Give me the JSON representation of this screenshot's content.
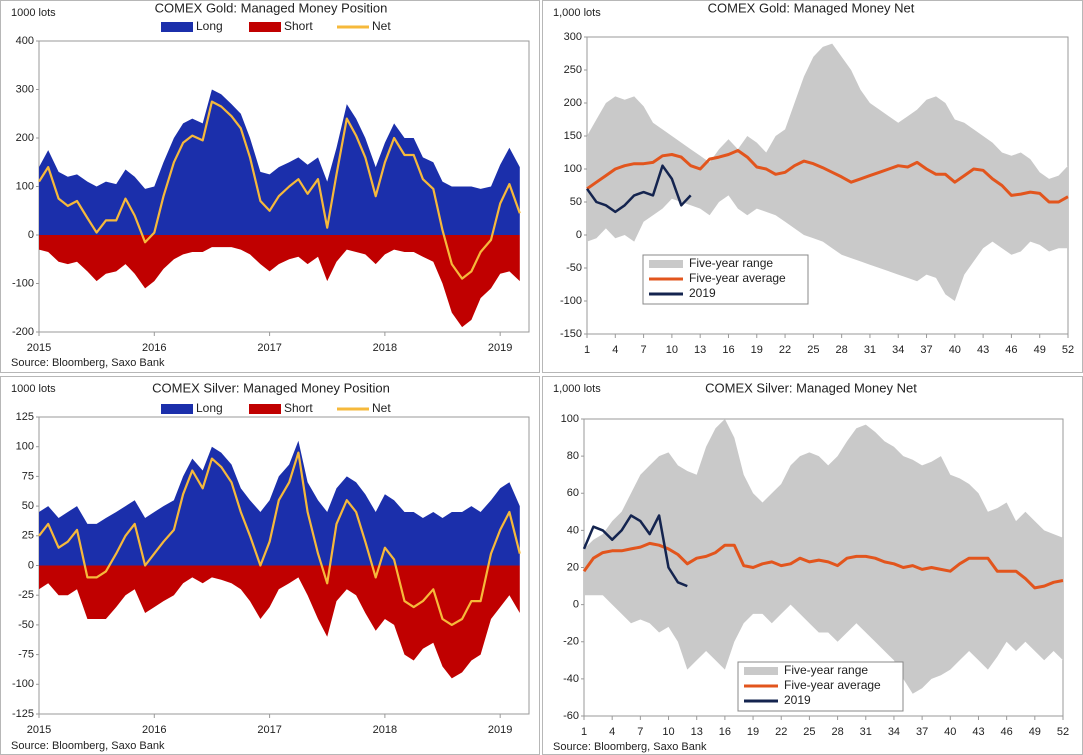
{
  "chart_data": [
    {
      "type": "position-area",
      "title": "COMEX Gold: Managed Money Position",
      "y_label": "1000 lots",
      "source": "Source: Bloomberg, Saxo Bank",
      "legend": "top",
      "x": [
        2015,
        2015.08,
        2015.17,
        2015.25,
        2015.33,
        2015.42,
        2015.5,
        2015.58,
        2015.67,
        2015.75,
        2015.83,
        2015.92,
        2016,
        2016.08,
        2016.17,
        2016.25,
        2016.33,
        2016.42,
        2016.5,
        2016.58,
        2016.67,
        2016.75,
        2016.83,
        2016.92,
        2017,
        2017.08,
        2017.17,
        2017.25,
        2017.33,
        2017.42,
        2017.5,
        2017.58,
        2017.67,
        2017.75,
        2017.83,
        2017.92,
        2018,
        2018.08,
        2018.17,
        2018.25,
        2018.33,
        2018.42,
        2018.5,
        2018.58,
        2018.67,
        2018.75,
        2018.83,
        2018.92,
        2019,
        2019.08,
        2019.17
      ],
      "xlim": [
        2015,
        2019.25
      ],
      "xticks": [
        2015,
        2016,
        2017,
        2018,
        2019
      ],
      "ylim": [
        -200,
        400
      ],
      "yticks": [
        -200,
        -100,
        0,
        100,
        200,
        300,
        400
      ],
      "series": [
        {
          "name": "Long",
          "color": "#1b2fab",
          "style": "area",
          "values": [
            140,
            175,
            130,
            120,
            125,
            110,
            100,
            110,
            105,
            135,
            120,
            95,
            100,
            150,
            200,
            230,
            240,
            230,
            300,
            290,
            270,
            250,
            200,
            130,
            125,
            140,
            150,
            160,
            145,
            160,
            110,
            180,
            270,
            240,
            200,
            140,
            190,
            230,
            200,
            200,
            160,
            150,
            110,
            100,
            100,
            100,
            95,
            100,
            145,
            180,
            140
          ]
        },
        {
          "name": "Short",
          "color": "#c00000",
          "style": "area",
          "values": [
            -30,
            -35,
            -55,
            -60,
            -55,
            -75,
            -95,
            -80,
            -75,
            -60,
            -80,
            -110,
            -95,
            -70,
            -50,
            -40,
            -35,
            -35,
            -25,
            -25,
            -25,
            -30,
            -40,
            -60,
            -75,
            -60,
            -50,
            -45,
            -60,
            -45,
            -95,
            -55,
            -30,
            -35,
            -40,
            -60,
            -40,
            -30,
            -35,
            -35,
            -45,
            -55,
            -100,
            -160,
            -190,
            -175,
            -130,
            -110,
            -80,
            -75,
            -95
          ]
        },
        {
          "name": "Net",
          "color": "#f6b93b",
          "style": "line",
          "values": [
            110,
            140,
            75,
            60,
            70,
            35,
            5,
            30,
            30,
            75,
            40,
            -15,
            5,
            80,
            150,
            190,
            205,
            195,
            275,
            265,
            245,
            220,
            160,
            70,
            50,
            80,
            100,
            115,
            85,
            115,
            15,
            125,
            240,
            205,
            160,
            80,
            150,
            200,
            165,
            165,
            115,
            95,
            10,
            -60,
            -90,
            -75,
            -35,
            -10,
            65,
            105,
            45
          ]
        }
      ]
    },
    {
      "type": "seasonal",
      "title": "COMEX Gold: Managed Money Net",
      "y_label": "1,000 lots",
      "legend": "lower left",
      "x": [
        1,
        2,
        3,
        4,
        5,
        6,
        7,
        8,
        9,
        10,
        11,
        12,
        13,
        14,
        15,
        16,
        17,
        18,
        19,
        20,
        21,
        22,
        23,
        24,
        25,
        26,
        27,
        28,
        29,
        30,
        31,
        32,
        33,
        34,
        35,
        36,
        37,
        38,
        39,
        40,
        41,
        42,
        43,
        44,
        45,
        46,
        47,
        48,
        49,
        50,
        51,
        52
      ],
      "xlim": [
        1,
        52
      ],
      "xticks": [
        1,
        4,
        7,
        10,
        13,
        16,
        19,
        22,
        25,
        28,
        31,
        34,
        37,
        40,
        43,
        46,
        49,
        52
      ],
      "ylim": [
        -150,
        300
      ],
      "yticks": [
        -150,
        -100,
        -50,
        0,
        50,
        100,
        150,
        200,
        250,
        300
      ],
      "series": [
        {
          "name": "Five-year range",
          "color": "#c9c9c9",
          "high": [
            150,
            175,
            200,
            210,
            205,
            210,
            195,
            170,
            160,
            150,
            140,
            130,
            120,
            110,
            130,
            145,
            130,
            150,
            140,
            125,
            150,
            160,
            200,
            240,
            270,
            285,
            290,
            270,
            250,
            220,
            200,
            190,
            180,
            170,
            180,
            190,
            205,
            210,
            200,
            175,
            170,
            160,
            150,
            140,
            125,
            120,
            125,
            115,
            95,
            85,
            90,
            105
          ],
          "low": [
            -10,
            -5,
            10,
            -5,
            0,
            -10,
            20,
            30,
            40,
            55,
            50,
            45,
            40,
            30,
            50,
            60,
            40,
            30,
            40,
            35,
            30,
            20,
            10,
            0,
            -5,
            -10,
            -20,
            -30,
            -35,
            -40,
            -45,
            -50,
            -55,
            -60,
            -65,
            -70,
            -60,
            -65,
            -90,
            -100,
            -60,
            -40,
            -20,
            -10,
            -20,
            -30,
            -25,
            -10,
            -15,
            -25,
            -20,
            -20
          ]
        },
        {
          "name": "Five-year average",
          "color": "#e2551d",
          "values": [
            70,
            80,
            90,
            100,
            105,
            108,
            108,
            110,
            120,
            122,
            118,
            105,
            100,
            115,
            118,
            122,
            128,
            118,
            103,
            100,
            92,
            95,
            105,
            112,
            108,
            102,
            95,
            88,
            80,
            85,
            90,
            95,
            100,
            105,
            103,
            110,
            100,
            92,
            92,
            80,
            90,
            100,
            98,
            85,
            75,
            60,
            62,
            65,
            63,
            50,
            50,
            58
          ]
        },
        {
          "name": "2019",
          "color": "#14244f",
          "values": [
            70,
            50,
            45,
            35,
            45,
            60,
            65,
            60,
            105,
            85,
            45,
            60,
            null,
            null,
            null,
            null,
            null,
            null,
            null,
            null,
            null,
            null,
            null,
            null,
            null,
            null,
            null,
            null,
            null,
            null,
            null,
            null,
            null,
            null,
            null,
            null,
            null,
            null,
            null,
            null,
            null,
            null,
            null,
            null,
            null,
            null,
            null,
            null,
            null,
            null,
            null,
            null
          ]
        }
      ]
    },
    {
      "type": "position-area",
      "title": "COMEX Silver: Managed Money Position",
      "y_label": "1000 lots",
      "source": "Source: Bloomberg, Saxo Bank",
      "legend": "top",
      "x": [
        2015,
        2015.08,
        2015.17,
        2015.25,
        2015.33,
        2015.42,
        2015.5,
        2015.58,
        2015.67,
        2015.75,
        2015.83,
        2015.92,
        2016,
        2016.08,
        2016.17,
        2016.25,
        2016.33,
        2016.42,
        2016.5,
        2016.58,
        2016.67,
        2016.75,
        2016.83,
        2016.92,
        2017,
        2017.08,
        2017.17,
        2017.25,
        2017.33,
        2017.42,
        2017.5,
        2017.58,
        2017.67,
        2017.75,
        2017.83,
        2017.92,
        2018,
        2018.08,
        2018.17,
        2018.25,
        2018.33,
        2018.42,
        2018.5,
        2018.58,
        2018.67,
        2018.75,
        2018.83,
        2018.92,
        2019,
        2019.08,
        2019.17
      ],
      "xlim": [
        2015,
        2019.25
      ],
      "xticks": [
        2015,
        2016,
        2017,
        2018,
        2019
      ],
      "ylim": [
        -125,
        125
      ],
      "yticks": [
        -125,
        -100,
        -75,
        -50,
        -25,
        0,
        25,
        50,
        75,
        100,
        125
      ],
      "series": [
        {
          "name": "Long",
          "color": "#1b2fab",
          "style": "area",
          "values": [
            45,
            50,
            40,
            45,
            50,
            35,
            35,
            40,
            45,
            50,
            55,
            40,
            45,
            50,
            55,
            75,
            90,
            80,
            100,
            95,
            85,
            65,
            55,
            45,
            55,
            75,
            85,
            105,
            70,
            55,
            45,
            65,
            75,
            70,
            60,
            45,
            60,
            55,
            45,
            45,
            40,
            45,
            40,
            45,
            45,
            50,
            45,
            55,
            65,
            70,
            50
          ]
        },
        {
          "name": "Short",
          "color": "#c00000",
          "style": "area",
          "values": [
            -20,
            -15,
            -25,
            -25,
            -20,
            -45,
            -45,
            -45,
            -35,
            -25,
            -20,
            -40,
            -35,
            -30,
            -25,
            -15,
            -10,
            -15,
            -10,
            -12,
            -15,
            -20,
            -30,
            -45,
            -35,
            -20,
            -15,
            -10,
            -25,
            -45,
            -60,
            -30,
            -20,
            -25,
            -40,
            -55,
            -45,
            -50,
            -75,
            -80,
            -70,
            -65,
            -85,
            -95,
            -90,
            -80,
            -75,
            -45,
            -35,
            -25,
            -40
          ]
        },
        {
          "name": "Net",
          "color": "#f6b93b",
          "style": "line",
          "values": [
            25,
            35,
            15,
            20,
            30,
            -10,
            -10,
            -5,
            10,
            25,
            35,
            0,
            10,
            20,
            30,
            60,
            80,
            65,
            90,
            83,
            70,
            45,
            25,
            0,
            20,
            55,
            70,
            95,
            45,
            10,
            -15,
            35,
            55,
            45,
            20,
            -10,
            15,
            5,
            -30,
            -35,
            -30,
            -20,
            -45,
            -50,
            -45,
            -30,
            -30,
            10,
            30,
            45,
            10
          ]
        }
      ]
    },
    {
      "type": "seasonal",
      "title": "COMEX Silver: Managed Money Net",
      "y_label": "1,000 lots",
      "source": "Source: Bloomberg, Saxo Bank",
      "legend": "lower left",
      "x": [
        1,
        2,
        3,
        4,
        5,
        6,
        7,
        8,
        9,
        10,
        11,
        12,
        13,
        14,
        15,
        16,
        17,
        18,
        19,
        20,
        21,
        22,
        23,
        24,
        25,
        26,
        27,
        28,
        29,
        30,
        31,
        32,
        33,
        34,
        35,
        36,
        37,
        38,
        39,
        40,
        41,
        42,
        43,
        44,
        45,
        46,
        47,
        48,
        49,
        50,
        51,
        52
      ],
      "xlim": [
        1,
        52
      ],
      "xticks": [
        1,
        4,
        7,
        10,
        13,
        16,
        19,
        22,
        25,
        28,
        31,
        34,
        37,
        40,
        43,
        46,
        49,
        52
      ],
      "ylim": [
        -60,
        100
      ],
      "yticks": [
        -60,
        -40,
        -20,
        0,
        20,
        40,
        60,
        80,
        100
      ],
      "series": [
        {
          "name": "Five-year range",
          "color": "#c9c9c9",
          "high": [
            30,
            35,
            38,
            45,
            50,
            60,
            70,
            75,
            80,
            82,
            75,
            72,
            70,
            85,
            95,
            100,
            90,
            70,
            60,
            55,
            60,
            65,
            75,
            80,
            82,
            80,
            75,
            80,
            88,
            95,
            97,
            93,
            88,
            85,
            80,
            78,
            75,
            77,
            80,
            70,
            68,
            65,
            60,
            50,
            52,
            55,
            45,
            50,
            45,
            40,
            38,
            36
          ],
          "low": [
            5,
            5,
            5,
            0,
            -5,
            -10,
            -8,
            -10,
            -15,
            -12,
            -20,
            -35,
            -30,
            -25,
            -30,
            -35,
            -20,
            -10,
            -5,
            -5,
            -10,
            -5,
            0,
            -5,
            -10,
            -15,
            -15,
            -20,
            -15,
            -10,
            -15,
            -20,
            -25,
            -30,
            -40,
            -48,
            -45,
            -40,
            -38,
            -35,
            -30,
            -25,
            -30,
            -35,
            -28,
            -20,
            -25,
            -20,
            -25,
            -30,
            -25,
            -30
          ]
        },
        {
          "name": "Five-year average",
          "color": "#e2551d",
          "values": [
            18,
            25,
            28,
            29,
            29,
            30,
            31,
            33,
            32,
            30,
            27,
            22,
            25,
            26,
            28,
            32,
            32,
            21,
            20,
            22,
            23,
            21,
            22,
            25,
            23,
            24,
            23,
            21,
            25,
            26,
            26,
            25,
            23,
            22,
            20,
            21,
            19,
            20,
            19,
            18,
            22,
            25,
            25,
            25,
            18,
            18,
            18,
            14,
            9,
            10,
            12,
            13
          ]
        },
        {
          "name": "2019",
          "color": "#14244f",
          "values": [
            30,
            42,
            40,
            35,
            40,
            48,
            45,
            38,
            48,
            20,
            12,
            10,
            null,
            null,
            null,
            null,
            null,
            null,
            null,
            null,
            null,
            null,
            null,
            null,
            null,
            null,
            null,
            null,
            null,
            null,
            null,
            null,
            null,
            null,
            null,
            null,
            null,
            null,
            null,
            null,
            null,
            null,
            null,
            null,
            null,
            null,
            null,
            null,
            null,
            null,
            null,
            null
          ]
        }
      ]
    }
  ]
}
